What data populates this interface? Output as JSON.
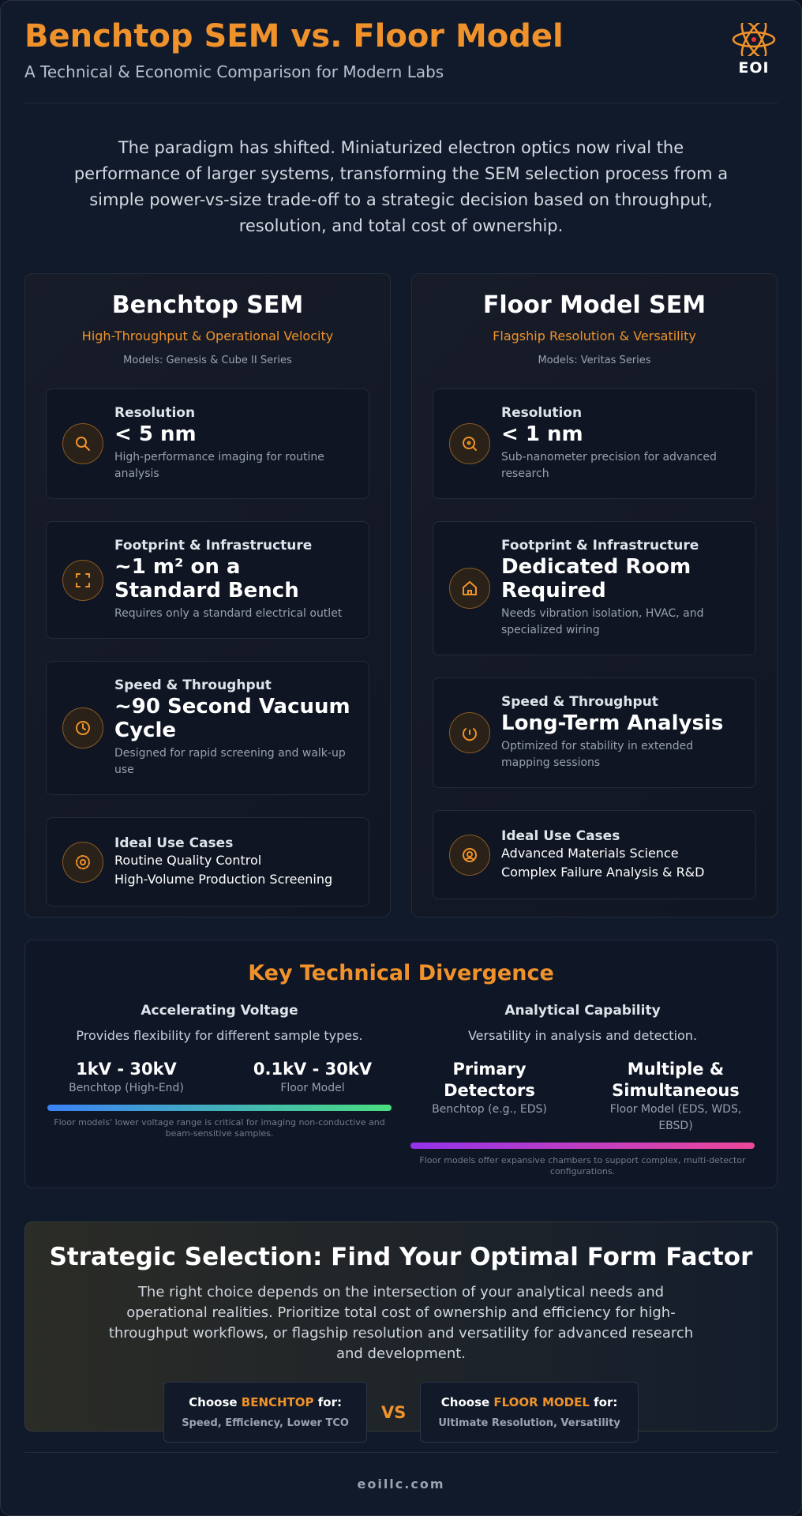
{
  "header": {
    "title": "Benchtop SEM vs. Floor Model",
    "subtitle": "A Technical & Economic Comparison for Modern Labs",
    "logo": "EOI"
  },
  "intro": "The paradigm has shifted. Miniaturized electron optics now rival the performance of larger systems, transforming the SEM selection process from a simple power-vs-size trade-off to a strategic decision based on throughput, resolution, and total cost of ownership.",
  "columns": [
    {
      "title": "Benchtop SEM",
      "subtitle": "High-Throughput & Operational Velocity",
      "models": "Models: Genesis & Cube II Series",
      "items": [
        {
          "label": "Resolution",
          "value": "< 5 nm",
          "note": "High-performance imaging for routine analysis"
        },
        {
          "label": "Footprint & Infrastructure",
          "value": "~1 m² on a Standard Bench",
          "note": "Requires only a standard electrical outlet"
        },
        {
          "label": "Speed & Throughput",
          "value": "~90 Second Vacuum Cycle",
          "note": "Designed for rapid screening and walk-up use"
        }
      ],
      "use_cases": {
        "label": "Ideal Use Cases",
        "items": [
          "Routine Quality Control",
          "High-Volume Production Screening"
        ]
      }
    },
    {
      "title": "Floor Model SEM",
      "subtitle": "Flagship Resolution & Versatility",
      "models": "Models: Veritas Series",
      "items": [
        {
          "label": "Resolution",
          "value": "< 1 nm",
          "note": "Sub-nanometer precision for advanced research"
        },
        {
          "label": "Footprint & Infrastructure",
          "value": "Dedicated Room Required",
          "note": "Needs vibration isolation, HVAC, and specialized wiring"
        },
        {
          "label": "Speed & Throughput",
          "value": "Long-Term Analysis",
          "note": "Optimized for stability in extended mapping sessions"
        }
      ],
      "use_cases": {
        "label": "Ideal Use Cases",
        "items": [
          "Advanced Materials Science",
          "Complex Failure Analysis & R&D"
        ]
      }
    }
  ],
  "divergence": {
    "title": "Key Technical Divergence",
    "voltage": {
      "title": "Accelerating Voltage",
      "desc": "Provides flexibility for different sample types.",
      "items": [
        {
          "value": "1kV - 30kV",
          "label": "Benchtop (High-End)"
        },
        {
          "value": "0.1kV - 30kV",
          "label": "Floor Model"
        }
      ],
      "note": "Floor models' lower voltage range is critical for imaging non-conductive and beam-sensitive samples."
    },
    "analytical": {
      "title": "Analytical Capability",
      "desc": "Versatility in analysis and detection.",
      "items": [
        {
          "value": "Primary Detectors",
          "label": "Benchtop (e.g., EDS)"
        },
        {
          "value": "Multiple & Simultaneous",
          "label": "Floor Model (EDS, WDS, EBSD)"
        }
      ],
      "note": "Floor models offer expansive chambers to support complex, multi-detector configurations."
    }
  },
  "strategy": {
    "title": "Strategic Selection: Find Your Optimal Form Factor",
    "text": "The right choice depends on the intersection of your analytical needs and operational realities. Prioritize total cost of ownership and efficiency for high-throughput workflows, or flagship resolution and versatility for advanced research and development.",
    "choices": [
      {
        "prefix": "Choose ",
        "highlight": "BENCHTOP",
        "suffix": " for:",
        "detail": "Speed, Efficiency, Lower TCO"
      },
      {
        "prefix": "Choose ",
        "highlight": "FLOOR MODEL",
        "suffix": " for:",
        "detail": "Ultimate Resolution, Versatility"
      }
    ],
    "vs": "VS"
  },
  "footer": "eoillc.com"
}
